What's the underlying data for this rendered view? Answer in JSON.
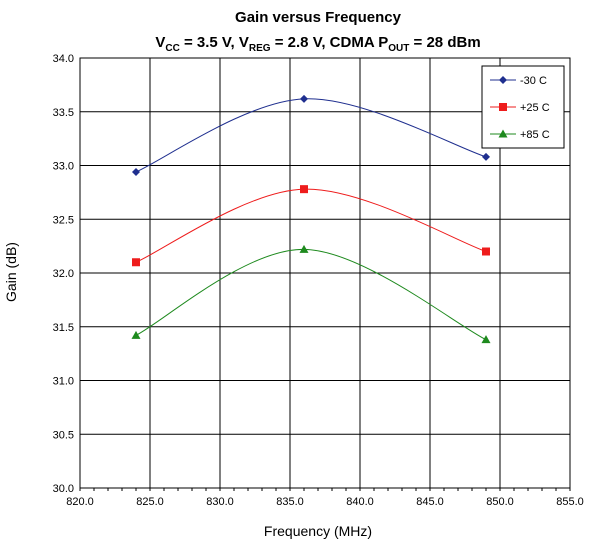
{
  "chart_data": {
    "type": "line",
    "title": "Gain versus Frequency",
    "subtitle_parts": [
      {
        "text": "V",
        "sub": false
      },
      {
        "text": "CC",
        "sub": true
      },
      {
        "text": " = 3.5 V, V",
        "sub": false
      },
      {
        "text": "REG",
        "sub": true
      },
      {
        "text": " = 2.8 V, CDMA P",
        "sub": false
      },
      {
        "text": "OUT",
        "sub": true
      },
      {
        "text": " = 28 dBm",
        "sub": false
      }
    ],
    "xlabel": "Frequency (MHz)",
    "ylabel": "Gain (dB)",
    "xlim": [
      820.0,
      855.0
    ],
    "ylim": [
      30.0,
      34.0
    ],
    "xticks": [
      "820.0",
      "825.0",
      "830.0",
      "835.0",
      "840.0",
      "845.0",
      "850.0",
      "855.0"
    ],
    "yticks": [
      "30.0",
      "30.5",
      "31.0",
      "31.5",
      "32.0",
      "32.5",
      "33.0",
      "33.5",
      "34.0"
    ],
    "grid": true,
    "legend_position": "top-right",
    "series": [
      {
        "name": "-30 C",
        "color": "#1f2f8f",
        "marker": "diamond",
        "x": [
          824,
          836,
          849
        ],
        "y": [
          32.94,
          33.62,
          33.08
        ]
      },
      {
        "name": "+25 C",
        "color": "#ee1c1c",
        "marker": "square",
        "x": [
          824,
          836,
          849
        ],
        "y": [
          32.1,
          32.78,
          32.2
        ]
      },
      {
        "name": "+85 C",
        "color": "#1e8a1e",
        "marker": "triangle",
        "x": [
          824,
          836,
          849
        ],
        "y": [
          31.42,
          32.22,
          31.38
        ]
      }
    ]
  }
}
